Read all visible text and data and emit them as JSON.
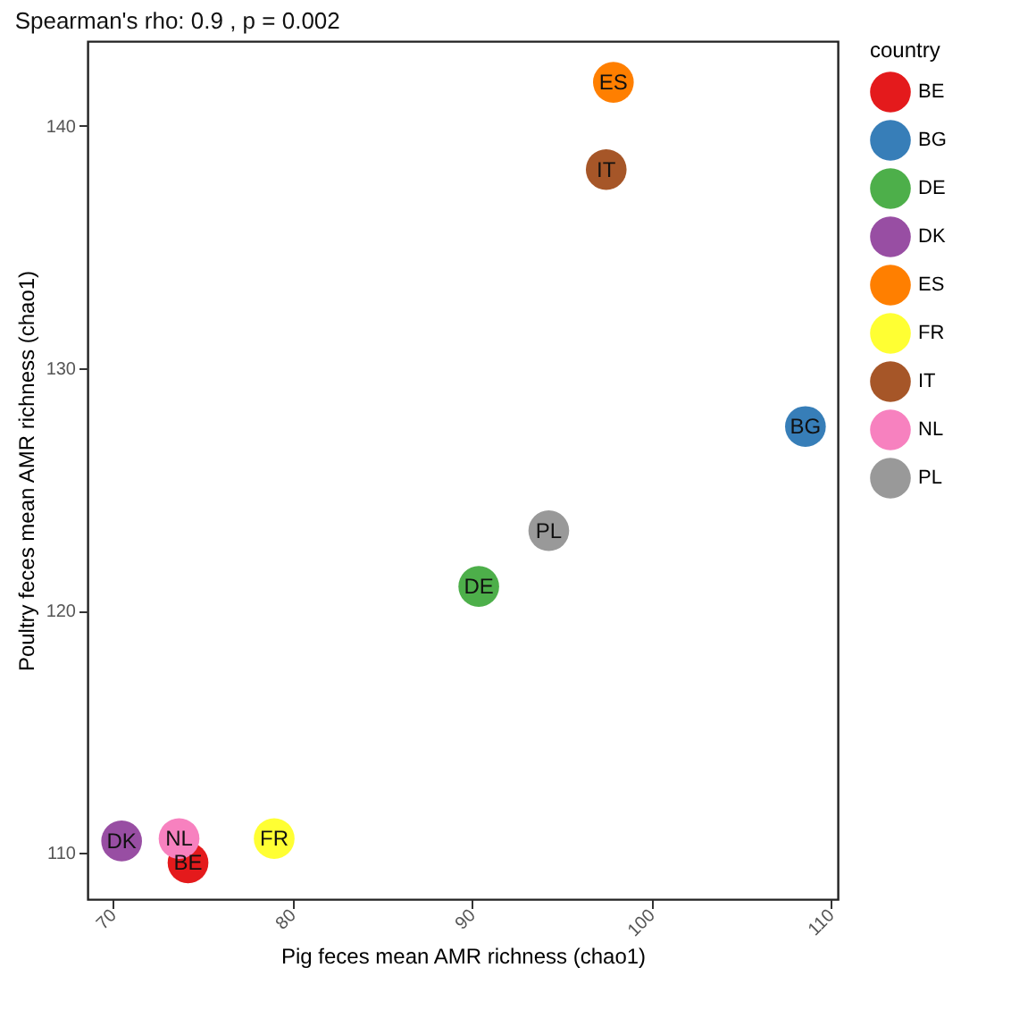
{
  "chart_data": {
    "type": "scatter",
    "title": "Spearman's rho: 0.9 , p =  0.002",
    "xlabel": "Pig feces mean AMR richness (chao1)",
    "ylabel": "Poultry feces mean AMR richness (chao1)",
    "legend_title": "country",
    "legend": "right",
    "grid": false,
    "marker": "circle",
    "xlim": [
      68.6,
      110.4
    ],
    "ylim": [
      108.1,
      143.5
    ],
    "xticks": [
      70,
      80,
      90,
      100,
      110
    ],
    "yticks": [
      110,
      120,
      130,
      140
    ],
    "series": [
      {
        "name": "BE",
        "color": "#e41a1c",
        "x": [
          74.2
        ],
        "values": [
          109.6
        ]
      },
      {
        "name": "BG",
        "color": "#377eb8",
        "x": [
          108.6
        ],
        "values": [
          127.6
        ]
      },
      {
        "name": "DE",
        "color": "#4daf4a",
        "x": [
          90.4
        ],
        "values": [
          121.0
        ]
      },
      {
        "name": "DK",
        "color": "#984ea3",
        "x": [
          70.5
        ],
        "values": [
          110.5
        ]
      },
      {
        "name": "ES",
        "color": "#ff7f00",
        "x": [
          97.9
        ],
        "values": [
          141.8
        ]
      },
      {
        "name": "FR",
        "color": "#ffff33",
        "x": [
          79.0
        ],
        "values": [
          110.6
        ]
      },
      {
        "name": "IT",
        "color": "#a65628",
        "x": [
          97.5
        ],
        "values": [
          138.2
        ]
      },
      {
        "name": "NL",
        "color": "#f781bf",
        "x": [
          73.7
        ],
        "values": [
          110.6
        ]
      },
      {
        "name": "PL",
        "color": "#999999",
        "x": [
          94.3
        ],
        "values": [
          123.3
        ]
      }
    ]
  }
}
